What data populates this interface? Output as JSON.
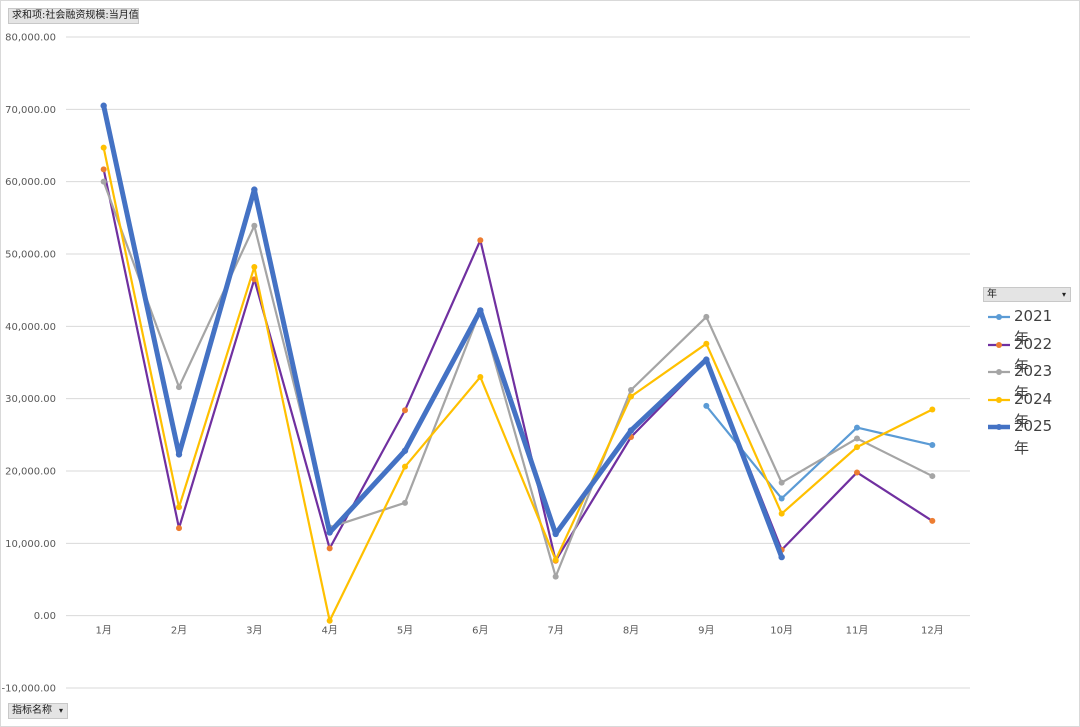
{
  "header_field": {
    "label": "求和项:社会融资规模:当月值"
  },
  "axis_field": {
    "label": "指标名称",
    "arrow": "▾"
  },
  "legend_field": {
    "label": "年",
    "arrow": "▾"
  },
  "chart_data": {
    "type": "line",
    "categories": [
      "1月",
      "2月",
      "3月",
      "4月",
      "5月",
      "6月",
      "7月",
      "8月",
      "9月",
      "10月",
      "11月",
      "12月"
    ],
    "ylim": [
      -10000,
      80000
    ],
    "yticks": [
      "80,000.00",
      "70,000.00",
      "60,000.00",
      "50,000.00",
      "40,000.00",
      "30,000.00",
      "20,000.00",
      "10,000.00",
      "0.00",
      "-10,000.00"
    ],
    "ytick_values": [
      80000,
      70000,
      60000,
      50000,
      40000,
      30000,
      20000,
      10000,
      0,
      -10000
    ],
    "grid": true,
    "legend_position": "right",
    "series": [
      {
        "name": "2021年",
        "color": "#5b9bd5",
        "width": 2.2,
        "values": [
          null,
          null,
          null,
          null,
          null,
          null,
          null,
          null,
          29000,
          16200,
          26000,
          23600
        ]
      },
      {
        "name": "2022年",
        "color": "#7030a0",
        "marker": "#ed7d31",
        "width": 2.2,
        "values": [
          61700,
          12100,
          46500,
          9300,
          28400,
          51900,
          7600,
          24700,
          35300,
          9100,
          19800,
          13100
        ]
      },
      {
        "name": "2023年",
        "color": "#a5a5a5",
        "width": 2.2,
        "values": [
          60000,
          31600,
          53900,
          12200,
          15600,
          42200,
          5400,
          31200,
          41300,
          18400,
          24500,
          19300
        ]
      },
      {
        "name": "2024年",
        "color": "#ffc000",
        "width": 2.2,
        "values": [
          64700,
          15000,
          48200,
          -700,
          20600,
          33000,
          7700,
          30300,
          37600,
          14100,
          23300,
          28500
        ]
      },
      {
        "name": "2025年",
        "color": "#4472c4",
        "width": 5,
        "values": [
          70500,
          22300,
          58900,
          11500,
          22800,
          42200,
          11300,
          25600,
          35400,
          8100,
          null,
          null
        ]
      }
    ]
  }
}
